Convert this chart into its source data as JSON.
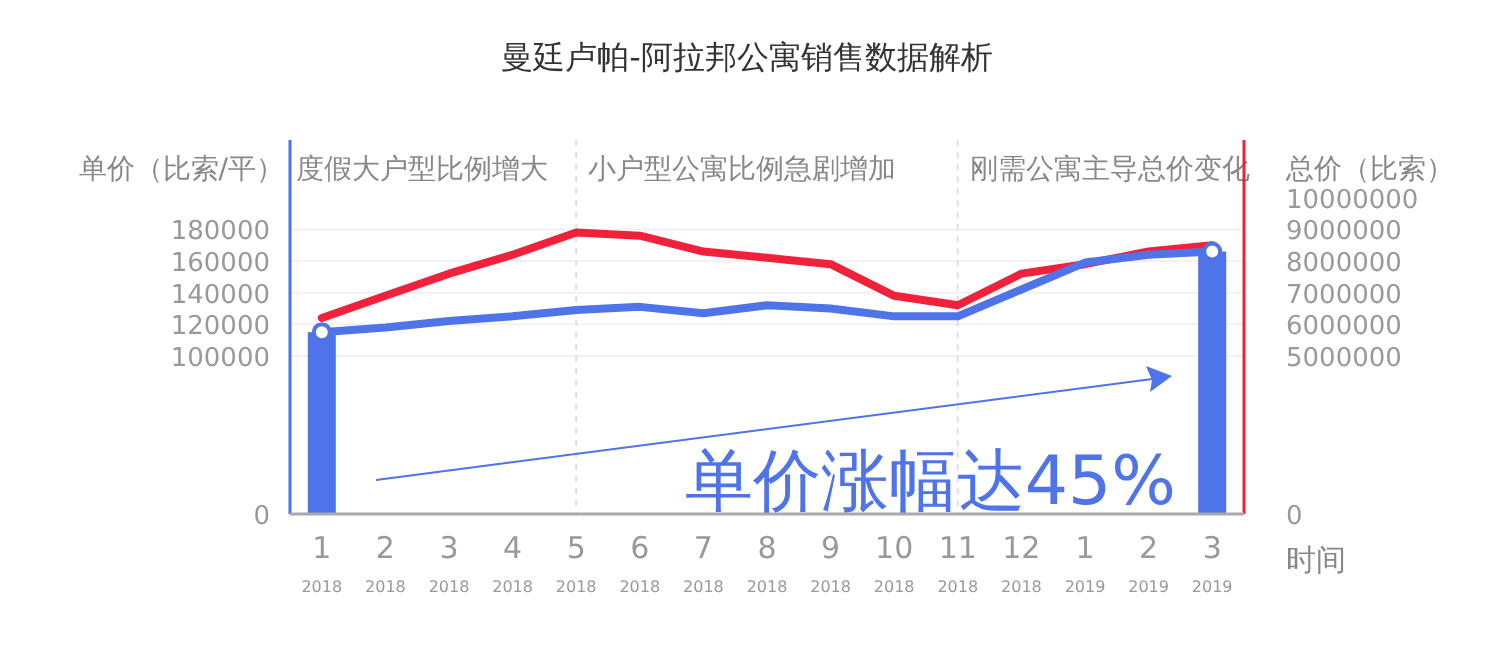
{
  "chart_data": {
    "type": "line",
    "title": "曼廷卢帕-阿拉邦公寓销售数据解析",
    "xlabel": "时间",
    "ylabel": "单价（比索/平）",
    "y2label": "总价（比索）",
    "categories": [
      "1\n2018",
      "2\n2018",
      "3\n2018",
      "4\n2018",
      "5\n2018",
      "6\n2018",
      "7\n2018",
      "8\n2018",
      "9\n2018",
      "10\n2018",
      "11\n2018",
      "12\n2018",
      "1\n2019",
      "2\n2019",
      "3\n2019"
    ],
    "series": [
      {
        "type": "bar",
        "color": "#4f73e8",
        "values": [
          115000,
          null,
          null,
          null,
          null,
          null,
          null,
          null,
          null,
          null,
          null,
          null,
          null,
          null,
          166000
        ]
      },
      {
        "color": "#f0213a",
        "axis": "y2",
        "values": [
          6200000,
          6900000,
          7600000,
          8200000,
          8900000,
          8800000,
          8300000,
          8100000,
          7900000,
          6900000,
          6600000,
          7600000,
          7900000,
          8300000,
          8500000
        ]
      },
      {
        "color": "#4f73e8",
        "values": [
          115000,
          118000,
          122000,
          125000,
          129000,
          131000,
          127000,
          132000,
          130000,
          125000,
          125000,
          142000,
          159000,
          164000,
          166000
        ]
      }
    ],
    "ylim": [
      0,
      234000
    ],
    "yticks": [
      0,
      100000,
      120000,
      140000,
      160000,
      180000
    ],
    "y2lim": [
      0,
      11700000
    ],
    "y2ticks": [
      0,
      5000000,
      6000000,
      7000000,
      8000000,
      9000000,
      10000000
    ],
    "ref_lines": [
      {
        "axis": "x",
        "value": "5\n2018",
        "label": null,
        "line_style": "dashed"
      },
      {
        "axis": "x",
        "value": "11\n2018",
        "label": null,
        "line_style": "dashed"
      }
    ],
    "annotations": [
      "度假大户型比例增大",
      "小户型公寓比例急剧增加",
      "刚需公寓主导总价变化",
      "单价涨幅达45%"
    ],
    "grid": "y"
  }
}
